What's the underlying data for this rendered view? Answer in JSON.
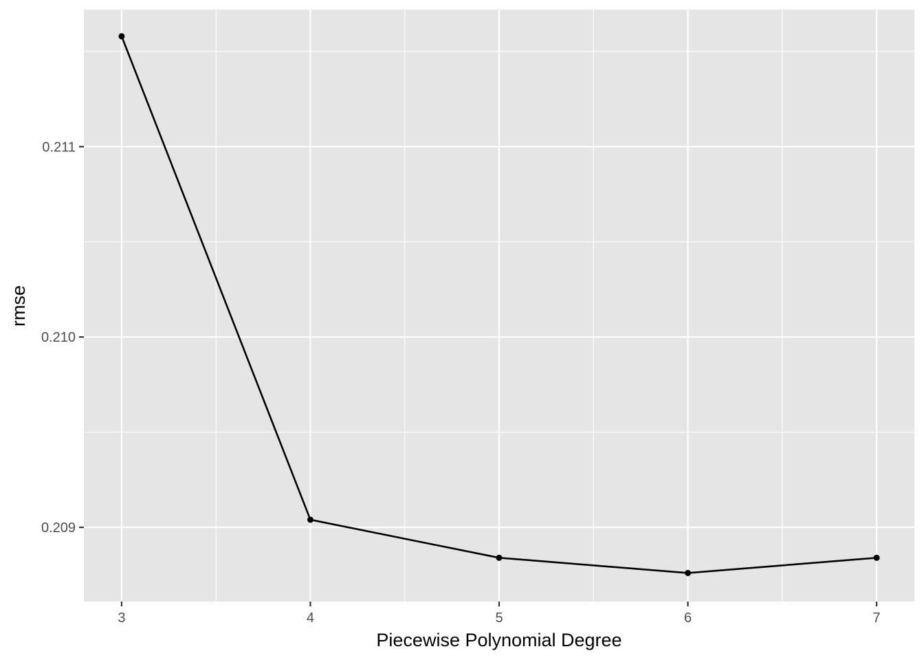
{
  "chart_data": {
    "type": "line",
    "title": "",
    "xlabel": "Piecewise Polynomial Degree",
    "ylabel": "rmse",
    "x": [
      3,
      4,
      5,
      6,
      7
    ],
    "series": [
      {
        "values": [
          0.21158,
          0.20904,
          0.20884,
          0.20876,
          0.20884
        ]
      }
    ],
    "xticks": [
      "3",
      "4",
      "5",
      "6",
      "7"
    ],
    "yticks": [
      "0.209",
      "0.210",
      "0.211"
    ],
    "xlim": [
      2.8,
      7.2
    ],
    "ylim": [
      0.20861,
      0.21172
    ],
    "grid": true,
    "colors": {
      "panel": "#e5e5e5",
      "grid": "#ffffff",
      "line": "#000000",
      "tick_text": "#4d4d4d"
    }
  }
}
